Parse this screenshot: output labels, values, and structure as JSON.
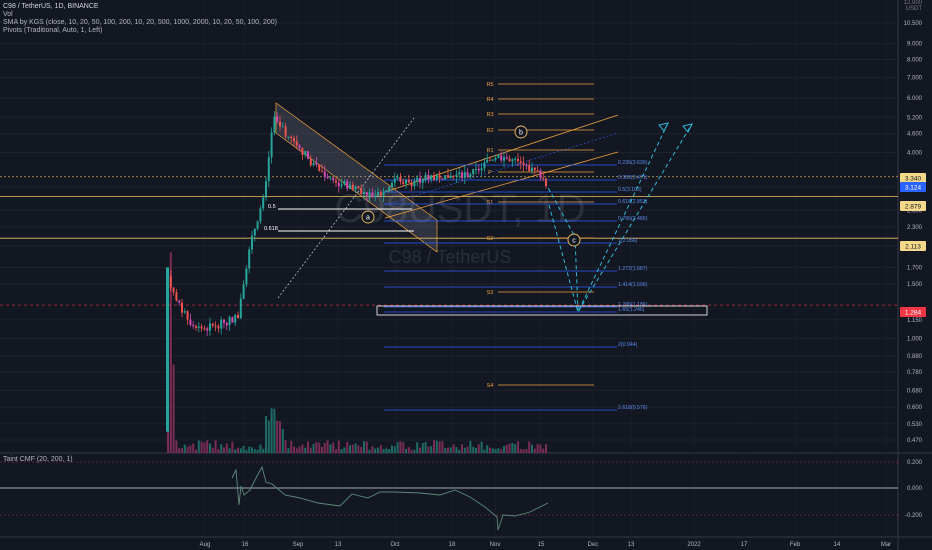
{
  "header": {
    "symbol": "C98 / TetherUS, 1D, BINANCE",
    "vol": "Vol",
    "sma": "SMA by KGS (close, 10, 20, 50, 100, 200, 10, 20, 500, 1000, 2000, 10, 20, 50, 100, 200)",
    "pivots": "Pivots (Traditional, Auto, 1, Left)"
  },
  "watermark": {
    "ticker": "C98USDT, 1D",
    "name": "C98 / TetherUS"
  },
  "price_scale": {
    "currency": "USDT",
    "top_label": "12.000",
    "ticks": [
      "10.500",
      "9.000",
      "8.000",
      "7.000",
      "6.000",
      "5.200",
      "4.600",
      "4.000",
      "3.100",
      "2.600",
      "2.300",
      "2.000",
      "1.700",
      "1.500",
      "1.150",
      "1.000",
      "0.880",
      "0.780",
      "0.680",
      "0.600",
      "0.530",
      "0.470"
    ],
    "tags": [
      {
        "text": "3.340",
        "color": "#f5d98a",
        "fg": "#131722"
      },
      {
        "text": "3.124",
        "color": "#2962ff",
        "fg": "#ffffff"
      },
      {
        "text": "2.879",
        "color": "#f5d98a",
        "fg": "#131722"
      },
      {
        "text": "2.113",
        "color": "#f5d98a",
        "fg": "#131722"
      },
      {
        "text": "1.284",
        "color": "#f23645",
        "fg": "#ffffff"
      }
    ]
  },
  "time_axis": [
    "Aug",
    "16",
    "Sep",
    "13",
    "Oct",
    "18",
    "Nov",
    "15",
    "Dec",
    "13",
    "2022",
    "17",
    "Feb",
    "14",
    "Mar"
  ],
  "annotations": {
    "fib_left": [
      "0.5",
      "0.618"
    ],
    "fib_right": [
      "0.236(3.639)",
      "0.382(3.471)",
      "0.5(3.103)",
      "0.618(2.853)",
      "0.786(2.466)",
      "1(2.056)",
      "1.272(1.687)",
      "1.414(1.506)",
      "1.786(1.186)",
      "1.65(1.246)",
      "2(0.944)",
      "2.618(0.576)"
    ],
    "pivots": [
      "R5",
      "R4",
      "R3",
      "R2",
      "R1",
      "P",
      "S1",
      "S2",
      "S3",
      "S4"
    ],
    "waves": [
      "a",
      "b",
      "c"
    ]
  },
  "cmf": {
    "title": "Taint CMF (20, 200, 1)",
    "ticks": [
      "0.200",
      "0.000",
      "-0.200"
    ]
  },
  "colors": {
    "background": "#131722",
    "bull": "#26a69a",
    "bear": "#ef5350",
    "magenta": "#d14bb3",
    "pivot": "#f0a23c",
    "fib": "#2962ff",
    "channel": "#f0a23c",
    "projection": "#2fb8d8",
    "cmf": "#5d8a7a"
  },
  "chart_data": {
    "type": "candlestick",
    "description_series": "C98/USDT daily closes (approx.)",
    "dates": [
      "2021-07-23",
      "2021-07-30",
      "2021-08-06",
      "2021-08-13",
      "2021-08-20",
      "2021-08-27",
      "2021-09-03",
      "2021-09-10",
      "2021-09-17",
      "2021-09-24",
      "2021-10-01",
      "2021-10-08",
      "2021-10-15",
      "2021-10-22",
      "2021-10-29",
      "2021-11-05",
      "2021-11-12",
      "2021-11-19"
    ],
    "close": [
      1.6,
      1.28,
      1.22,
      1.75,
      2.7,
      5.1,
      4.1,
      3.6,
      3.35,
      2.8,
      3.2,
      3.45,
      3.35,
      3.4,
      3.5,
      3.9,
      3.7,
      3.12
    ],
    "ylim": [
      0.45,
      12.0
    ],
    "log_scale": true,
    "levels": {
      "orange_top": 3.34,
      "current": 3.124,
      "orange_mid": 2.879,
      "orange_low": 2.113,
      "red": 1.284
    }
  }
}
